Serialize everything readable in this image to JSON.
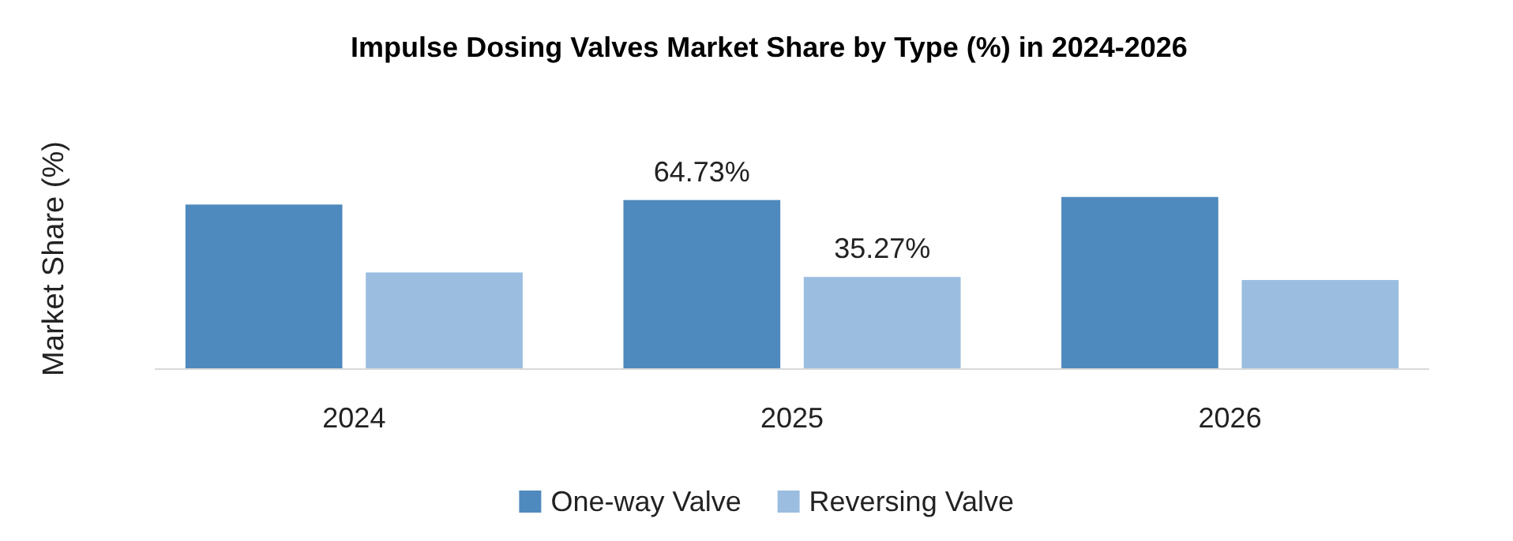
{
  "chart_data": {
    "type": "bar",
    "title": "Impulse Dosing Valves Market Share by Type (%) in 2024-2026",
    "ylabel": "Market Share (%)",
    "categories": [
      "2024",
      "2025",
      "2026"
    ],
    "series": [
      {
        "name": "One-way Valve",
        "color": "#4f8abe",
        "values": [
          63.0,
          64.73,
          65.9
        ],
        "value_labels": [
          null,
          "64.73%",
          null
        ]
      },
      {
        "name": "Reversing Valve",
        "color": "#9bbde0",
        "values": [
          37.0,
          35.27,
          34.1
        ],
        "value_labels": [
          null,
          "35.27%",
          null
        ]
      }
    ],
    "legend": "bottom",
    "grid": false
  }
}
